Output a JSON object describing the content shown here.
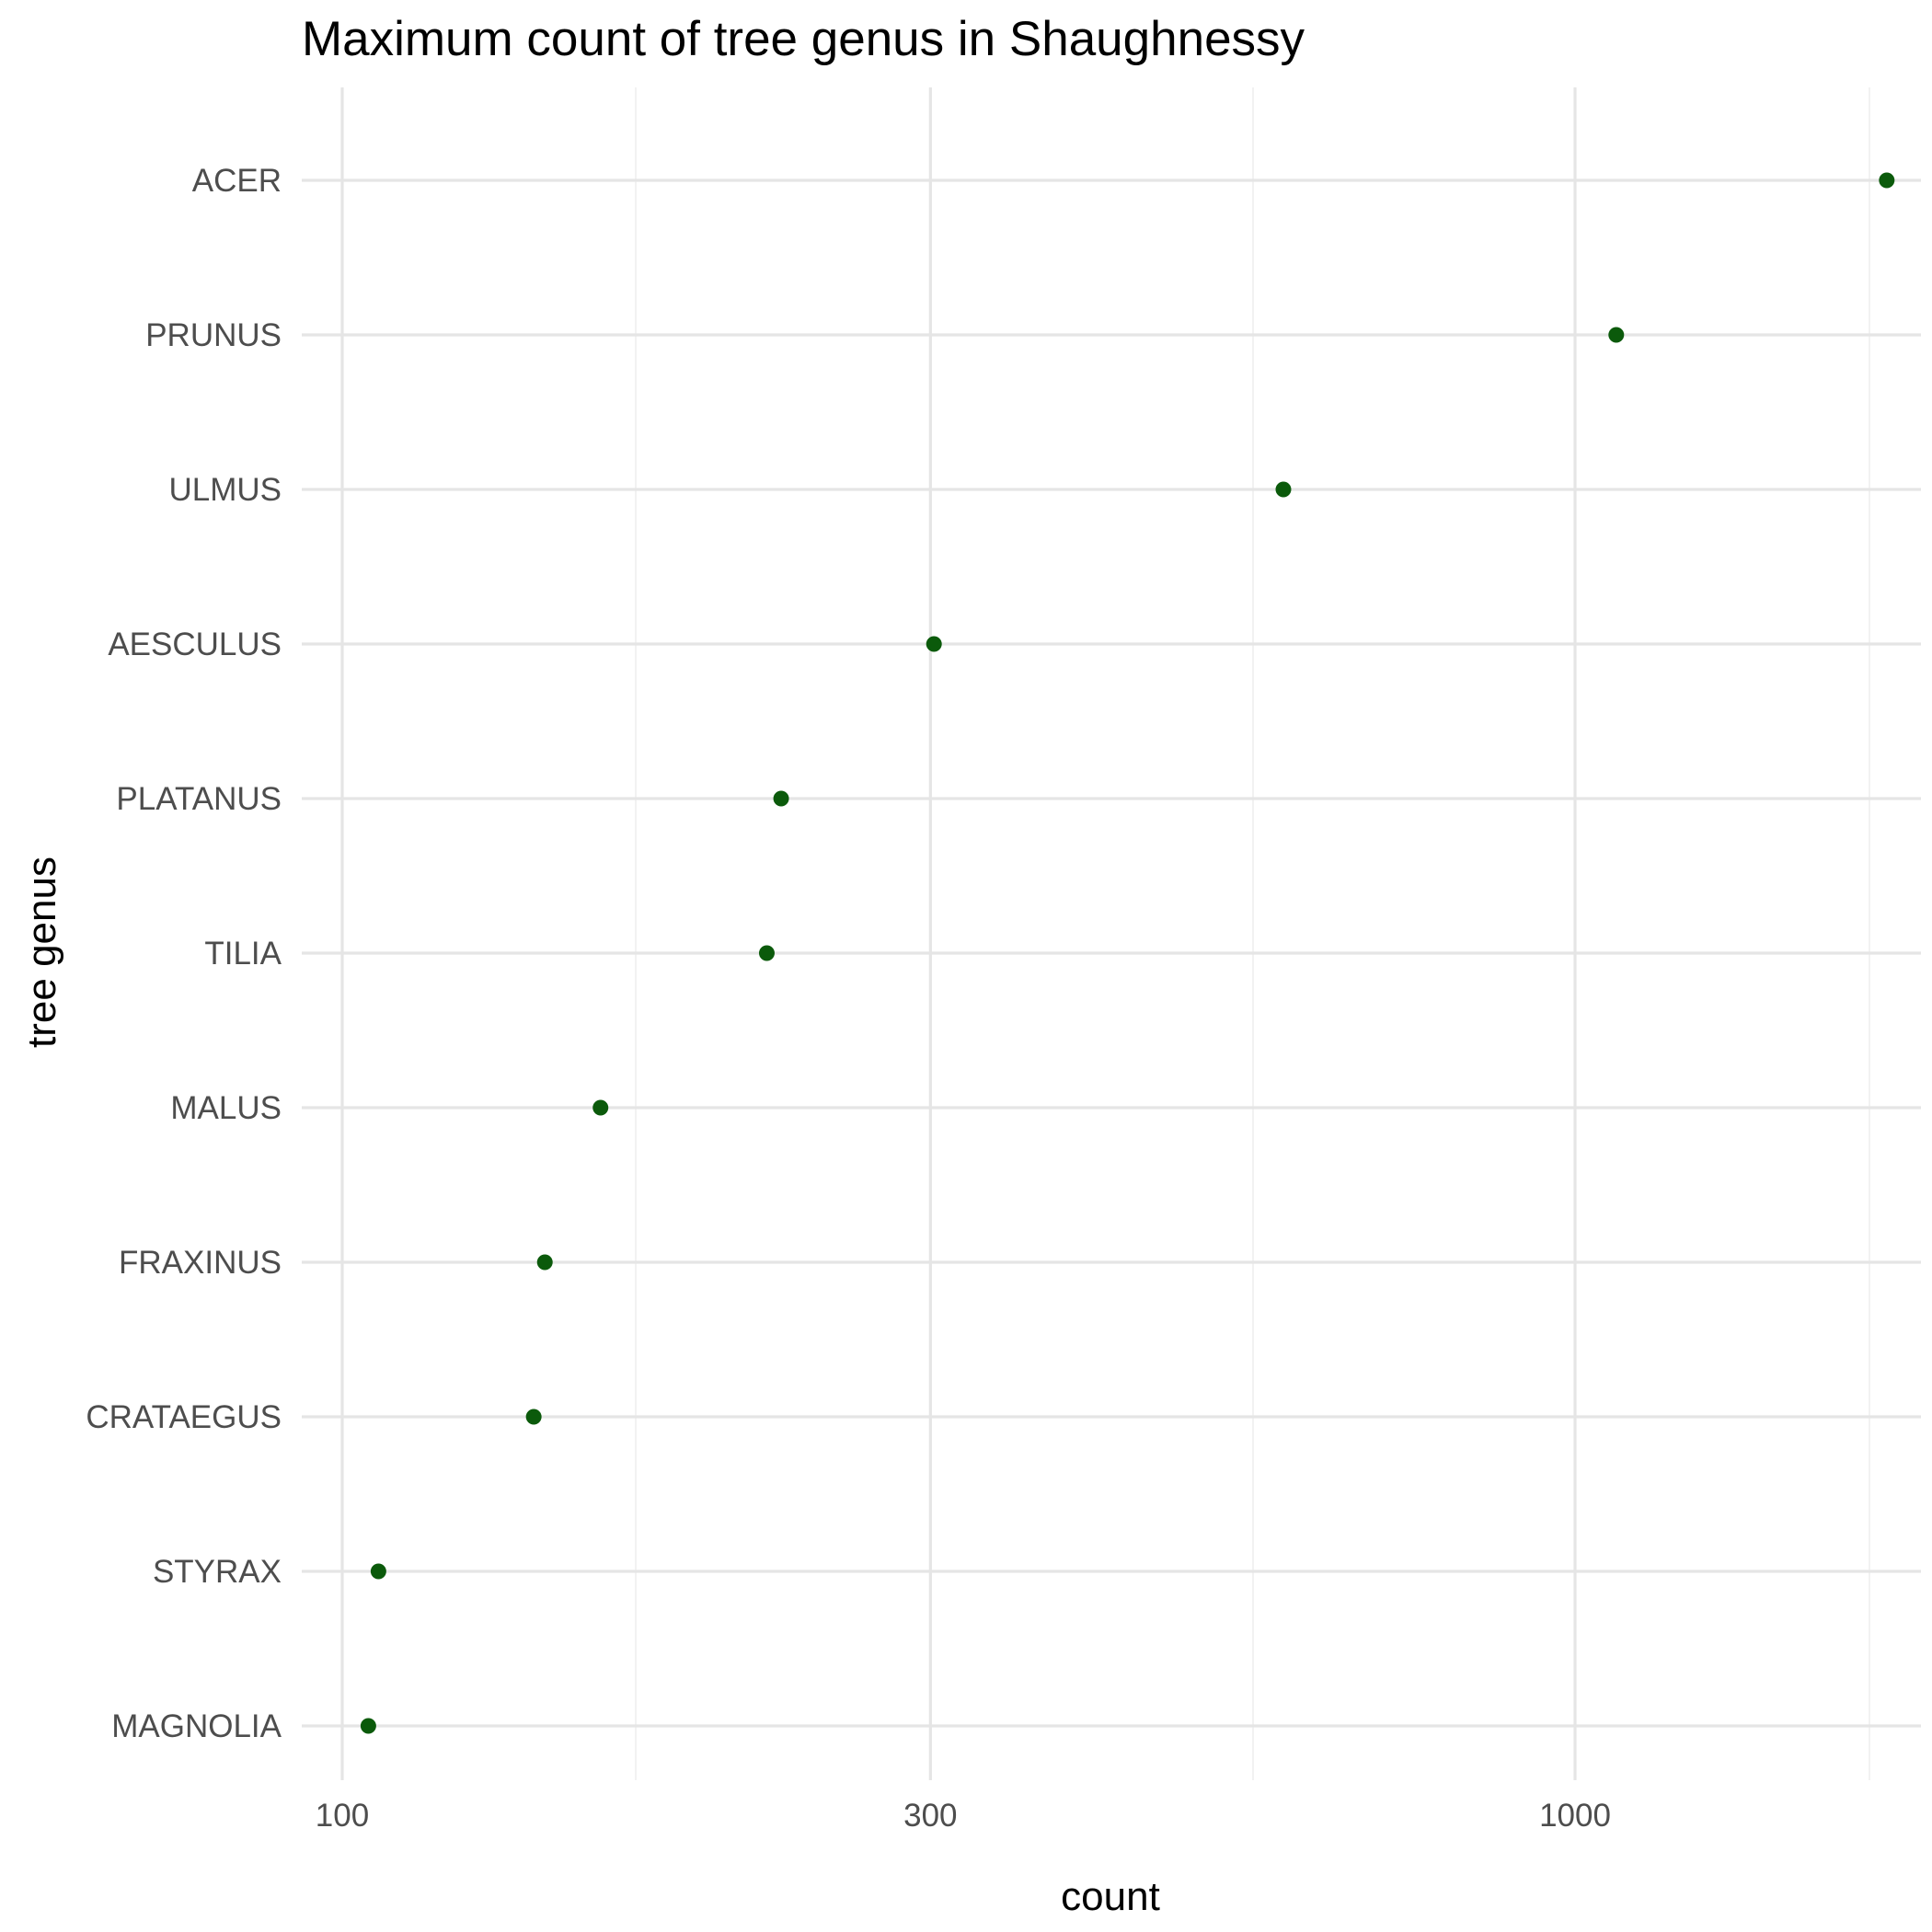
{
  "chart_data": {
    "type": "scatter",
    "title": "Maximum count of tree genus in Shaughnessy",
    "xlabel": "count",
    "ylabel": "tree genus",
    "x_scale": "log10",
    "xlim": [
      95,
      1900
    ],
    "x_ticks": [
      100,
      300,
      1000
    ],
    "x_tick_labels": [
      "100",
      "300",
      "1000"
    ],
    "x_minor_gridlines": [
      173,
      548,
      1733
    ],
    "grid": true,
    "legend": "none",
    "point_color": "#0b5a0b",
    "categories": [
      "ACER",
      "PRUNUS",
      "ULMUS",
      "AESCULUS",
      "PLATANUS",
      "TILIA",
      "MALUS",
      "FRAXINUS",
      "CRATAEGUS",
      "STYRAX",
      "MAGNOLIA"
    ],
    "values": [
      1790,
      1080,
      580,
      302,
      227,
      221,
      162,
      146,
      143,
      107,
      105
    ]
  }
}
